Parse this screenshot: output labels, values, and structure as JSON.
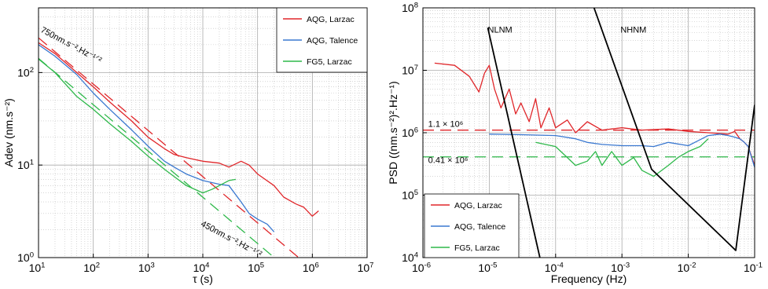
{
  "chart_data": [
    {
      "type": "line",
      "xlabel": "τ (s)",
      "ylabel": "Adev (nm.s⁻²)",
      "xscale": "log",
      "yscale": "log",
      "xlim": [
        10,
        10000000
      ],
      "ylim": [
        1,
        500
      ],
      "grid": true,
      "legend_position": "top-right",
      "x_ticks": [
        {
          "v": 10,
          "label": "10",
          "sup": "1"
        },
        {
          "v": 100,
          "label": "10",
          "sup": "2"
        },
        {
          "v": 1000,
          "label": "10",
          "sup": "3"
        },
        {
          "v": 10000,
          "label": "10",
          "sup": "4"
        },
        {
          "v": 100000,
          "label": "10",
          "sup": "5"
        },
        {
          "v": 1000000,
          "label": "10",
          "sup": "6"
        },
        {
          "v": 10000000,
          "label": "10",
          "sup": "7"
        }
      ],
      "y_ticks": [
        {
          "v": 1,
          "label": "10",
          "sup": "0"
        },
        {
          "v": 10,
          "label": "10",
          "sup": "1"
        },
        {
          "v": 100,
          "label": "10",
          "sup": "2"
        }
      ],
      "series": [
        {
          "name": "AQG, Larzac",
          "color": "#e0262a",
          "x": [
            10,
            20,
            50,
            100,
            200,
            500,
            1000,
            2000,
            3000,
            5000,
            10000,
            20000,
            30000,
            50000,
            70000,
            100000,
            200000,
            300000,
            500000,
            700000,
            1000000,
            1300000
          ],
          "y": [
            210,
            160,
            100,
            70,
            48,
            30,
            20,
            15,
            13,
            12,
            11,
            10.5,
            9.5,
            11,
            10,
            8,
            6,
            4.5,
            3.8,
            3.5,
            2.8,
            3.2
          ]
        },
        {
          "name": "AQG, Talence",
          "color": "#3a78d0",
          "x": [
            10,
            20,
            50,
            100,
            200,
            500,
            1000,
            2000,
            3000,
            5000,
            10000,
            20000,
            30000,
            50000,
            70000,
            100000,
            150000,
            200000
          ],
          "y": [
            200,
            150,
            95,
            60,
            40,
            24,
            16,
            11,
            9.5,
            8,
            6.8,
            6.2,
            6,
            4,
            3,
            2.6,
            2.3,
            1.9
          ]
        },
        {
          "name": "FG5, Larzac",
          "color": "#2eb84a",
          "x": [
            10,
            20,
            50,
            100,
            200,
            500,
            1000,
            2000,
            3000,
            5000,
            10000,
            15000,
            20000,
            30000,
            40000
          ],
          "y": [
            140,
            100,
            55,
            40,
            28,
            18,
            12.5,
            9,
            7.5,
            6,
            5,
            5.5,
            6,
            6.8,
            7
          ]
        }
      ],
      "reference_lines": [
        {
          "label": "750nm.s⁻².Hz⁻¹ᐟ²",
          "color": "#e0262a",
          "x": [
            10,
            3000000
          ],
          "y": [
            237,
            0.433
          ]
        },
        {
          "label": "450nm.s⁻².Hz⁻¹ᐟ²",
          "color": "#2eb84a",
          "x": [
            10,
            300000
          ],
          "y": [
            142,
            0.82
          ]
        }
      ],
      "annotations": [
        {
          "text": "750nm.s⁻².Hz⁻¹ᐟ²",
          "x": 10,
          "y": 237
        },
        {
          "text": "450nm.s⁻².Hz⁻¹ᐟ²",
          "x": 9000,
          "y": 2.5
        }
      ]
    },
    {
      "type": "line",
      "xlabel": "Frequency (Hz)",
      "ylabel": "PSD ((nm.s⁻²)².Hz⁻¹)",
      "xscale": "log",
      "yscale": "log",
      "xlim": [
        1e-06,
        0.1
      ],
      "ylim": [
        10000,
        100000000
      ],
      "grid": true,
      "legend_position": "bottom-left",
      "x_ticks": [
        {
          "v": 1e-06,
          "label": "10",
          "sup": "-6"
        },
        {
          "v": 1e-05,
          "label": "10",
          "sup": "-5"
        },
        {
          "v": 0.0001,
          "label": "10",
          "sup": "-4"
        },
        {
          "v": 0.001,
          "label": "10",
          "sup": "-3"
        },
        {
          "v": 0.01,
          "label": "10",
          "sup": "-2"
        },
        {
          "v": 0.1,
          "label": "10",
          "sup": "-1"
        }
      ],
      "y_ticks": [
        {
          "v": 10000,
          "label": "10",
          "sup": "4"
        },
        {
          "v": 100000,
          "label": "10",
          "sup": "5"
        },
        {
          "v": 1000000,
          "label": "10",
          "sup": "6"
        },
        {
          "v": 10000000,
          "label": "10",
          "sup": "7"
        },
        {
          "v": 100000000,
          "label": "10",
          "sup": "8"
        }
      ],
      "series": [
        {
          "name": "AQG, Larzac",
          "color": "#e0262a",
          "x": [
            1.5e-06,
            3e-06,
            5e-06,
            7e-06,
            8.5e-06,
            1e-05,
            1.2e-05,
            1.5e-05,
            2e-05,
            2.5e-05,
            3e-05,
            4e-05,
            5e-05,
            6e-05,
            8e-05,
            0.0001,
            0.00015,
            0.0002,
            0.0003,
            0.0005,
            0.001,
            0.002,
            0.005,
            0.01,
            0.02,
            0.04,
            0.05,
            0.06,
            0.07,
            0.08,
            0.1
          ],
          "y": [
            13000000,
            12000000,
            8000000,
            4500000,
            9000000,
            12000000,
            5000000,
            2500000,
            5000000,
            2000000,
            3000000,
            1500000,
            3500000,
            1200000,
            2500000,
            1200000,
            1600000,
            1000000,
            1500000,
            1100000,
            1200000,
            1100000,
            1150000,
            1050000,
            1000000,
            950000,
            1050000,
            800000,
            700000,
            600000,
            300000
          ]
        },
        {
          "name": "AQG, Talence",
          "color": "#3a78d0",
          "x": [
            1e-05,
            3e-05,
            0.0001,
            0.0002,
            0.0003,
            0.0005,
            0.001,
            0.002,
            0.003,
            0.005,
            0.01,
            0.02,
            0.03,
            0.04,
            0.05,
            0.06,
            0.07,
            0.08,
            0.1
          ],
          "y": [
            950000,
            930000,
            900000,
            800000,
            700000,
            650000,
            620000,
            620000,
            600000,
            700000,
            620000,
            900000,
            950000,
            900000,
            850000,
            800000,
            700000,
            600000,
            280000
          ]
        },
        {
          "name": "FG5, Larzac",
          "color": "#2eb84a",
          "x": [
            5e-05,
            0.0001,
            0.00015,
            0.0002,
            0.0003,
            0.0004,
            0.0005,
            0.0007,
            0.001,
            0.0015,
            0.002,
            0.003,
            0.005,
            0.007,
            0.01,
            0.015,
            0.02
          ],
          "y": [
            700000,
            600000,
            400000,
            300000,
            350000,
            500000,
            300000,
            500000,
            300000,
            400000,
            250000,
            200000,
            300000,
            400000,
            500000,
            600000,
            800000
          ]
        },
        {
          "name": "NLNM",
          "color": "#000000",
          "x": [
            9.5e-06,
            5.8e-05
          ],
          "y": [
            48000000,
            10000
          ]
        },
        {
          "name": "NHNM",
          "color": "#000000",
          "x": [
            0.00038,
            0.0028,
            0.052,
            0.1
          ],
          "y": [
            100000000,
            260000,
            13000,
            2800000
          ]
        }
      ],
      "reference_lines": [
        {
          "label": "1.1 × 10⁶",
          "color": "#e0262a",
          "y": 1100000
        },
        {
          "label": "0.41 × 10⁶",
          "color": "#2eb84a",
          "y": 410000
        }
      ],
      "annotations": [
        {
          "text": "NLNM",
          "x": 9.5e-06,
          "y": 40000000
        },
        {
          "text": "NHNM",
          "x": 0.00095,
          "y": 40000000
        },
        {
          "text": "1.1 × 10⁶",
          "x": 1.2e-06,
          "y": 1250000
        },
        {
          "text": "0.41 × 10⁶",
          "x": 1.2e-06,
          "y": 330000
        }
      ]
    }
  ]
}
